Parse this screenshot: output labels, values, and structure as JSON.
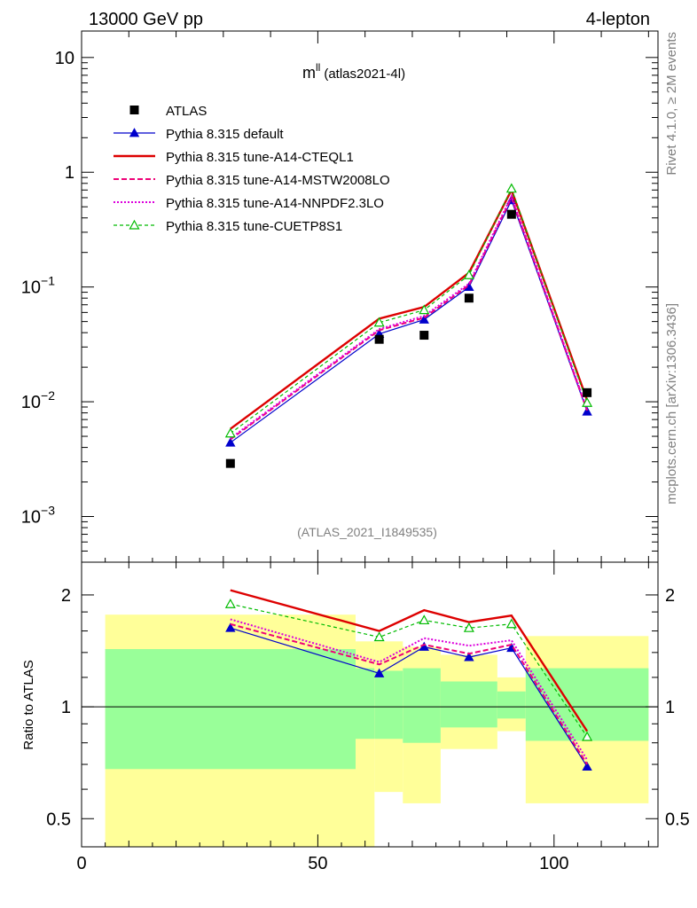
{
  "header": {
    "left": "13000 GeV pp",
    "right": "4-lepton"
  },
  "side_labels": {
    "top": "Rivet 4.1.0, ≥ 2M events",
    "bottom": "mcplots.cern.ch [arXiv:1306.3436]"
  },
  "chart_data": [
    {
      "type": "line",
      "panel": "main",
      "yscale": "log",
      "title": "m",
      "title_sup": "ll",
      "title_suffix": "(atlas2021-4l)",
      "analysis_id": "(ATLAS_2021_I1849535)",
      "xlim": [
        0,
        122
      ],
      "ylim": [
        0.0004,
        17
      ],
      "y_ticks": [
        {
          "v": 0.001,
          "base": "10",
          "exp": "−3"
        },
        {
          "v": 0.01,
          "base": "10",
          "exp": "−2"
        },
        {
          "v": 0.1,
          "base": "10",
          "exp": "−1"
        },
        {
          "v": 1,
          "base": "1",
          "exp": ""
        },
        {
          "v": 10,
          "base": "10",
          "exp": ""
        }
      ],
      "x": [
        31.5,
        63.0,
        72.5,
        82.0,
        91.0,
        107.0
      ],
      "data": {
        "name": "ATLAS",
        "values": [
          0.0029,
          0.035,
          0.038,
          0.08,
          0.43,
          0.012
        ]
      },
      "series": [
        {
          "name": "Pythia 8.315 default",
          "color": "#0000cc",
          "style": "solid",
          "marker": "triangle-filled",
          "values": [
            0.0044,
            0.039,
            0.052,
            0.1,
            0.57,
            0.0082
          ]
        },
        {
          "name": "Pythia 8.315 tune-A14-CTEQL1",
          "color": "#dd0000",
          "style": "solid-thick",
          "marker": "none",
          "values": [
            0.0058,
            0.053,
            0.067,
            0.133,
            0.7,
            0.0103
          ]
        },
        {
          "name": "Pythia 8.315 tune-A14-MSTW2008LO",
          "color": "#ee0077",
          "style": "dashed",
          "marker": "none",
          "values": [
            0.0047,
            0.042,
            0.054,
            0.104,
            0.6,
            0.0084
          ]
        },
        {
          "name": "Pythia 8.315 tune-A14-NNPDF2.3LO",
          "color": "#dd00dd",
          "style": "dotted",
          "marker": "none",
          "values": [
            0.0048,
            0.043,
            0.056,
            0.107,
            0.62,
            0.0086
          ]
        },
        {
          "name": "Pythia 8.315 tune-CUETP8S1",
          "color": "#00bb00",
          "style": "dashed-thin",
          "marker": "triangle-open",
          "values": [
            0.0053,
            0.049,
            0.063,
            0.127,
            0.72,
            0.0098
          ]
        }
      ]
    },
    {
      "type": "line",
      "panel": "ratio",
      "yscale": "log",
      "ylabel": "Ratio to ATLAS",
      "xlim": [
        0,
        122
      ],
      "ylim": [
        0.42,
        2.45
      ],
      "y_ticks": [
        {
          "v": 0.5,
          "label": "0.5"
        },
        {
          "v": 1,
          "label": "1"
        },
        {
          "v": 2,
          "label": "2"
        }
      ],
      "x_ticks": [
        {
          "v": 0,
          "label": "0"
        },
        {
          "v": 50,
          "label": "50"
        },
        {
          "v": 100,
          "label": "100"
        }
      ],
      "uncertainty_bins": [
        {
          "x0": 5,
          "x1": 58,
          "inner": [
            0.68,
            1.43
          ],
          "outer": [
            0.42,
            1.77
          ]
        },
        {
          "x0": 58,
          "x1": 62,
          "inner": [
            0.82,
            1.27
          ],
          "outer": [
            0.42,
            1.5
          ]
        },
        {
          "x0": 62,
          "x1": 68,
          "inner": [
            0.82,
            1.25
          ],
          "outer": [
            0.59,
            1.5
          ]
        },
        {
          "x0": 68,
          "x1": 76,
          "inner": [
            0.8,
            1.27
          ],
          "outer": [
            0.55,
            1.45
          ]
        },
        {
          "x0": 76,
          "x1": 88,
          "inner": [
            0.88,
            1.17
          ],
          "outer": [
            0.77,
            1.38
          ]
        },
        {
          "x0": 88,
          "x1": 94,
          "inner": [
            0.93,
            1.1
          ],
          "outer": [
            0.86,
            1.2
          ]
        },
        {
          "x0": 94,
          "x1": 120,
          "inner": [
            0.81,
            1.27
          ],
          "outer": [
            0.55,
            1.55
          ]
        }
      ],
      "x": [
        31.5,
        63.0,
        72.5,
        82.0,
        91.0,
        107.0
      ],
      "series": [
        {
          "name": "Pythia 8.315 default",
          "values": [
            1.63,
            1.23,
            1.45,
            1.36,
            1.44,
            0.69
          ]
        },
        {
          "name": "Pythia 8.315 tune-A14-CTEQL1",
          "values": [
            2.06,
            1.6,
            1.82,
            1.69,
            1.76,
            0.86
          ]
        },
        {
          "name": "Pythia 8.315 tune-A14-MSTW2008LO",
          "values": [
            1.67,
            1.3,
            1.47,
            1.39,
            1.47,
            0.7
          ]
        },
        {
          "name": "Pythia 8.315 tune-A14-NNPDF2.3LO",
          "values": [
            1.72,
            1.32,
            1.53,
            1.46,
            1.51,
            0.72
          ]
        },
        {
          "name": "Pythia 8.315 tune-CUETP8S1",
          "values": [
            1.89,
            1.54,
            1.71,
            1.63,
            1.67,
            0.83
          ]
        }
      ]
    }
  ]
}
